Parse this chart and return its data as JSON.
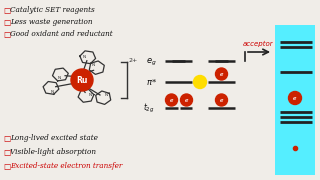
{
  "bg_color": "#f0ede8",
  "bullet_texts_top": [
    "Catalytic SET reagents",
    "Less waste generation",
    "Good oxidant and reductant"
  ],
  "bullet_texts_bottom": [
    "Long-lived excited state",
    "Visible-light absorption",
    "Excited-state electron transfer"
  ],
  "bullet_color": "#cc0000",
  "text_color": "#111111",
  "red_italic_color": "#cc0000",
  "eg_label": "e$_g$",
  "pi_label": "$\\pi$*",
  "t2g_label": "t$_{2g}$",
  "acceptor_label": "acceptor",
  "acceptor_color": "#cc0000",
  "cyan_rect_color": "#55eeff",
  "electron_color": "#cc2200",
  "excitation_color": "#ffdd00",
  "line_color": "#222222"
}
